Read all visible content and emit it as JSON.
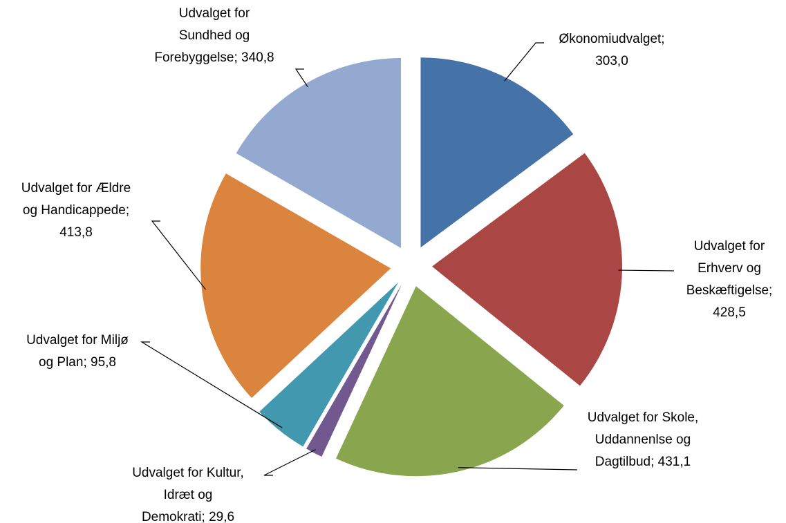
{
  "chart_data": {
    "type": "pie",
    "categories": [
      "Økonomiudvalget",
      "Udvalget for Erhverv og Beskæftigelse",
      "Udvalget for Skole, Uddannenlse og Dagtilbud",
      "Udvalget for Kultur, Idræt og Demokrati",
      "Udvalget for Miljø og Plan",
      "Udvalget for Ældre og Handicappede",
      "Udvalget for Sundhed og Forebyggelse"
    ],
    "values": [
      303.0,
      428.5,
      431.1,
      29.6,
      95.8,
      413.8,
      340.8
    ],
    "value_labels": [
      "303,0",
      "428,5",
      "431,1",
      "29,6",
      "95,8",
      "413,8",
      "340,8"
    ],
    "label_separator": "; ",
    "colors": [
      "#4572a7",
      "#aa4643",
      "#89a54e",
      "#71588f",
      "#4198af",
      "#db843d",
      "#93a9cf"
    ]
  }
}
